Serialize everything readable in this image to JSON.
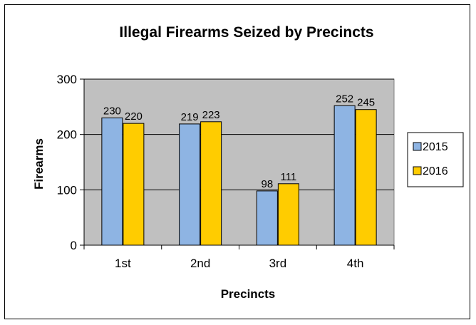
{
  "chart_data": {
    "type": "bar",
    "title": "Illegal Firearms Seized by Precincts",
    "xlabel": "Precincts",
    "ylabel": "Firearms",
    "categories": [
      "1st",
      "2nd",
      "3rd",
      "4th"
    ],
    "series": [
      {
        "name": "2015",
        "values": [
          230,
          219,
          98,
          252
        ],
        "color": "#8EB4E3"
      },
      {
        "name": "2016",
        "values": [
          220,
          223,
          111,
          245
        ],
        "color": "#FFCC00"
      }
    ],
    "ylim": [
      0,
      300
    ],
    "yticks": [
      0,
      100,
      200,
      300
    ],
    "grid": true,
    "plot_background": "#C0C0C0",
    "legend_position": "right"
  }
}
